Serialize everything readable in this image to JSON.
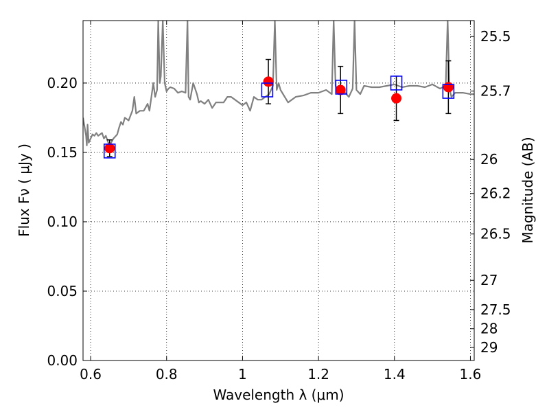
{
  "chart_data": {
    "type": "scatter",
    "xlabel": "Wavelength  λ (μm)",
    "ylabel": "Flux  Fν ( μJy )",
    "ylabel_right": "Magnitude (AB)",
    "xlim": [
      0.58,
      1.61
    ],
    "ylim": [
      0.0,
      0.245
    ],
    "grid": true,
    "x_ticks": [
      0.6,
      0.8,
      1.0,
      1.2,
      1.4,
      1.6
    ],
    "x_tick_labels": [
      "0.6",
      "0.8",
      "1",
      "1.2",
      "1.4",
      "1.6"
    ],
    "y_ticks": [
      0.0,
      0.05,
      0.1,
      0.15,
      0.2
    ],
    "y_tick_labels": [
      "0.00",
      "0.05",
      "0.10",
      "0.15",
      "0.20"
    ],
    "right_ticks": [
      {
        "flux": 0.2335,
        "label": "25.5"
      },
      {
        "flux": 0.1942,
        "label": "25.7"
      },
      {
        "flux": 0.1449,
        "label": "26"
      },
      {
        "flux": 0.1204,
        "label": "26.2"
      },
      {
        "flux": 0.0912,
        "label": "26.5"
      },
      {
        "flux": 0.0578,
        "label": "27"
      },
      {
        "flux": 0.0367,
        "label": "27.5"
      },
      {
        "flux": 0.0229,
        "label": "28"
      },
      {
        "flux": 0.0094,
        "label": "29"
      }
    ],
    "series": [
      {
        "kind": "line",
        "color": "#808080",
        "x": [
          0.58,
          0.588,
          0.59,
          0.592,
          0.595,
          0.6,
          0.605,
          0.61,
          0.615,
          0.62,
          0.625,
          0.63,
          0.635,
          0.64,
          0.645,
          0.65,
          0.66,
          0.67,
          0.675,
          0.68,
          0.685,
          0.69,
          0.7,
          0.71,
          0.715,
          0.72,
          0.73,
          0.74,
          0.75,
          0.755,
          0.76,
          0.765,
          0.77,
          0.775,
          0.778,
          0.782,
          0.785,
          0.79,
          0.795,
          0.8,
          0.805,
          0.81,
          0.82,
          0.83,
          0.84,
          0.85,
          0.855,
          0.858,
          0.862,
          0.87,
          0.88,
          0.885,
          0.89,
          0.9,
          0.91,
          0.92,
          0.93,
          0.94,
          0.95,
          0.96,
          0.97,
          0.98,
          0.99,
          1.0,
          1.01,
          1.02,
          1.03,
          1.04,
          1.05,
          1.06,
          1.07,
          1.08,
          1.085,
          1.09,
          1.095,
          1.1,
          1.12,
          1.14,
          1.16,
          1.18,
          1.2,
          1.22,
          1.235,
          1.24,
          1.245,
          1.25,
          1.26,
          1.28,
          1.29,
          1.295,
          1.3,
          1.31,
          1.32,
          1.34,
          1.36,
          1.38,
          1.4,
          1.42,
          1.44,
          1.46,
          1.48,
          1.5,
          1.52,
          1.535,
          1.54,
          1.545,
          1.55,
          1.56,
          1.58,
          1.6,
          1.61
        ],
        "y": [
          0.175,
          0.162,
          0.155,
          0.17,
          0.157,
          0.16,
          0.163,
          0.162,
          0.164,
          0.162,
          0.163,
          0.164,
          0.16,
          0.162,
          0.158,
          0.155,
          0.16,
          0.163,
          0.168,
          0.172,
          0.17,
          0.175,
          0.173,
          0.18,
          0.19,
          0.178,
          0.18,
          0.18,
          0.185,
          0.18,
          0.19,
          0.2,
          0.19,
          0.195,
          0.245,
          0.2,
          0.205,
          0.245,
          0.2,
          0.194,
          0.196,
          0.197,
          0.196,
          0.193,
          0.194,
          0.193,
          0.245,
          0.19,
          0.188,
          0.2,
          0.192,
          0.186,
          0.187,
          0.185,
          0.188,
          0.182,
          0.186,
          0.186,
          0.186,
          0.19,
          0.19,
          0.188,
          0.186,
          0.184,
          0.186,
          0.18,
          0.19,
          0.188,
          0.188,
          0.19,
          0.192,
          0.198,
          0.245,
          0.195,
          0.2,
          0.195,
          0.186,
          0.19,
          0.191,
          0.193,
          0.193,
          0.195,
          0.192,
          0.245,
          0.198,
          0.195,
          0.196,
          0.19,
          0.196,
          0.245,
          0.195,
          0.192,
          0.198,
          0.197,
          0.197,
          0.198,
          0.199,
          0.197,
          0.198,
          0.198,
          0.197,
          0.199,
          0.196,
          0.198,
          0.245,
          0.196,
          0.19,
          0.193,
          0.193,
          0.192,
          0.192
        ]
      },
      {
        "kind": "markers",
        "marker": "circle",
        "color": "#ff0000",
        "x": [
          0.65,
          1.068,
          1.258,
          1.405,
          1.542
        ],
        "y": [
          0.153,
          0.201,
          0.195,
          0.189,
          0.197
        ],
        "yerr": [
          0.006,
          0.016,
          0.017,
          0.016,
          0.019
        ]
      },
      {
        "kind": "markers",
        "marker": "square",
        "color": "#0000ff",
        "x": [
          0.65,
          1.065,
          1.26,
          1.405,
          1.542
        ],
        "y": [
          0.151,
          0.195,
          0.197,
          0.2,
          0.194
        ]
      }
    ]
  }
}
